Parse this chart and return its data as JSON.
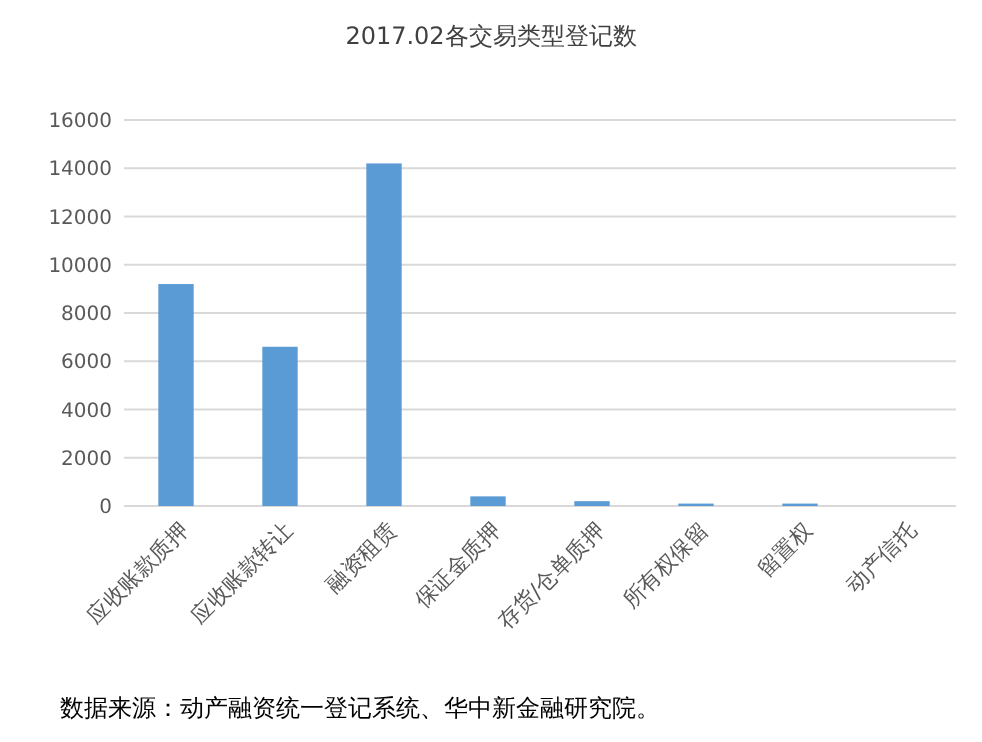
{
  "chart_data": {
    "type": "bar",
    "title": "2017.02各交易类型登记数",
    "categories": [
      "应收账款质押",
      "应收账款转让",
      "融资租赁",
      "保证金质押",
      "存货/仓单质押",
      "所有权保留",
      "留置权",
      "动产信托"
    ],
    "values": [
      9200,
      6600,
      14200,
      400,
      200,
      100,
      100,
      null
    ],
    "color": "#5b9bd5",
    "ylim": [
      0,
      16000
    ],
    "yticks": [
      0,
      2000,
      4000,
      6000,
      8000,
      10000,
      12000,
      14000,
      16000
    ],
    "grid": "y",
    "annotations": [
      "数据来源：动产融资统一登记系统、华中新金融研究院。"
    ]
  }
}
